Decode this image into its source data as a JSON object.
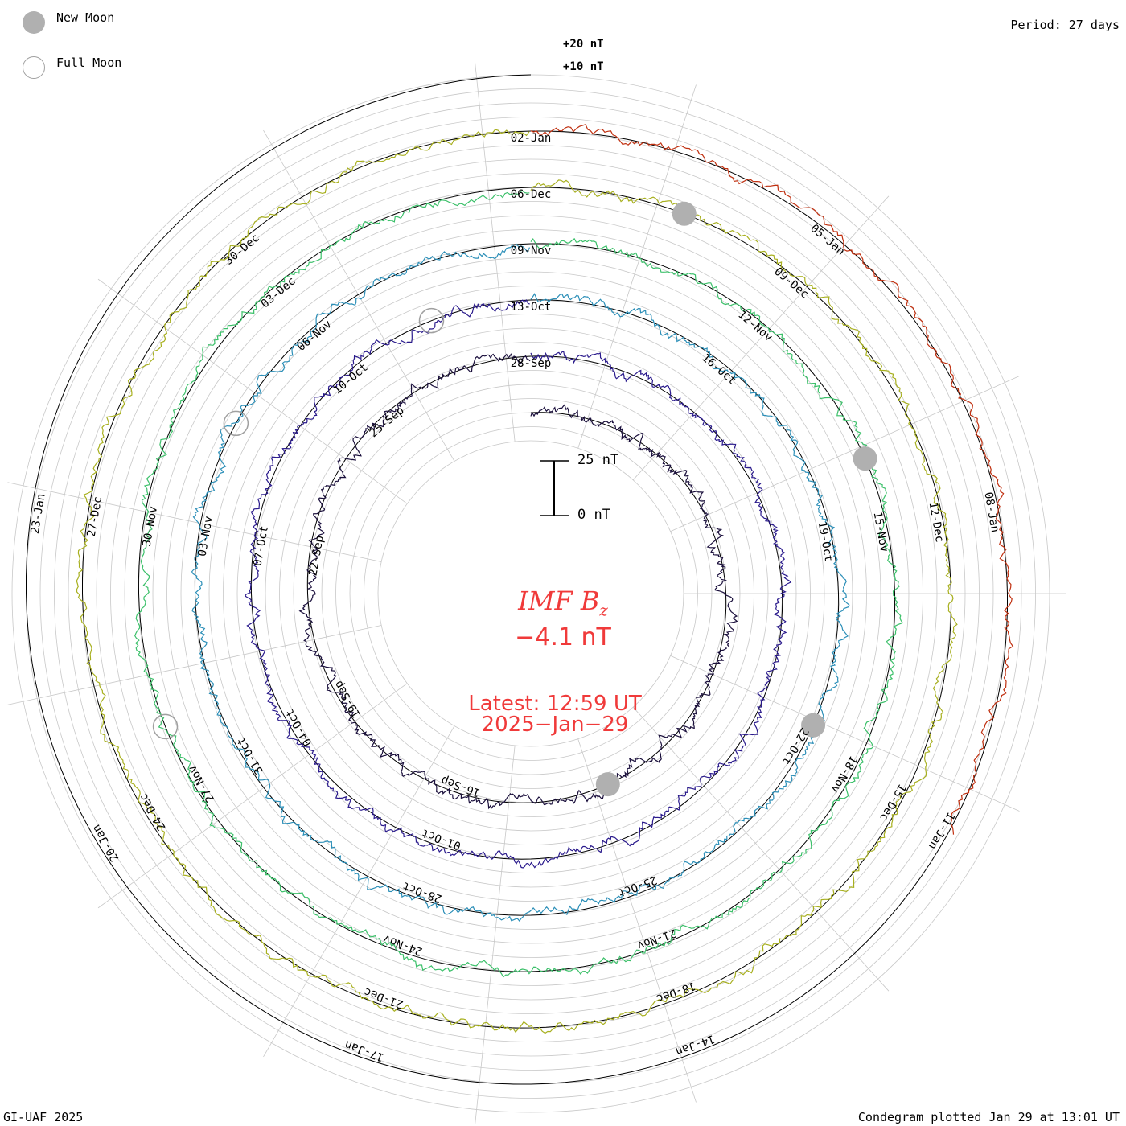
{
  "header": {
    "period_label": "Period: 27 days"
  },
  "legend": {
    "new_moon_label": "New Moon",
    "full_moon_label": "Full Moon",
    "new_moon_color": "#b0b0b0",
    "full_moon_color": "#ffffff"
  },
  "ring_labels": {
    "plus20": "+20 nT",
    "plus10": "+10 nT"
  },
  "scale_bar": {
    "top_label": "25 nT",
    "bottom_label": "0 nT"
  },
  "center": {
    "parameter": "IMF B",
    "subscript": "z",
    "value": "−4.1 nT",
    "latest_line": "Latest: 12:59 UT",
    "date_line": "2025−Jan−29",
    "color": "#f03a3a"
  },
  "footer": {
    "left": "GI-UAF 2025",
    "right": "Condegram plotted Jan 29 at 13:01 UT"
  },
  "chart_data": {
    "type": "condegram",
    "title": "IMF Bz",
    "unit": "nT",
    "period_days": 27,
    "latest_value": -4.1,
    "rotations": [
      {
        "index": 1,
        "color": "#1a0f3c",
        "date_labels": [
          "16-Sep",
          "19-Sep",
          "22-Sep",
          "25-Sep",
          "28-Sep"
        ]
      },
      {
        "index": 2,
        "color": "#2a1a8c",
        "date_labels": [
          "01-Oct",
          "04-Oct",
          "07-Oct",
          "10-Oct",
          "13-Oct",
          "16-Oct",
          "19-Oct",
          "22-Oct",
          "25-Oct"
        ]
      },
      {
        "index": 3,
        "color": "#2c8fb8",
        "date_labels": [
          "28-Oct",
          "31-Oct",
          "03-Nov",
          "06-Nov",
          "09-Nov",
          "12-Nov",
          "15-Nov",
          "18-Nov",
          "21-Nov"
        ]
      },
      {
        "index": 4,
        "color": "#3cc06a",
        "date_labels": [
          "24-Nov",
          "27-Nov",
          "30-Nov",
          "03-Dec",
          "06-Dec",
          "09-Dec",
          "12-Dec",
          "15-Dec",
          "18-Dec"
        ]
      },
      {
        "index": 5,
        "color": "#a8b020",
        "date_labels": [
          "21-Dec",
          "24-Dec",
          "27-Dec",
          "30-Dec",
          "02-Jan",
          "05-Jan",
          "08-Jan",
          "11-Jan",
          "14-Jan"
        ]
      },
      {
        "index": 6,
        "color": "#c03010",
        "date_labels": [
          "17-Jan",
          "20-Jan",
          "23-Jan"
        ]
      }
    ],
    "ring_ticks_nT": [
      10,
      20
    ],
    "moon_phases": [
      {
        "type": "new",
        "rotation": 1,
        "angle_deg": 158
      },
      {
        "type": "new",
        "rotation": 3,
        "angle_deg": 115
      },
      {
        "type": "new",
        "rotation": 4,
        "angle_deg": 68
      },
      {
        "type": "new",
        "rotation": 5,
        "angle_deg": 22
      },
      {
        "type": "full",
        "rotation": 2,
        "angle_deg": 340
      },
      {
        "type": "full",
        "rotation": 3,
        "angle_deg": 300
      },
      {
        "type": "full",
        "rotation": 4,
        "angle_deg": 250
      }
    ]
  }
}
